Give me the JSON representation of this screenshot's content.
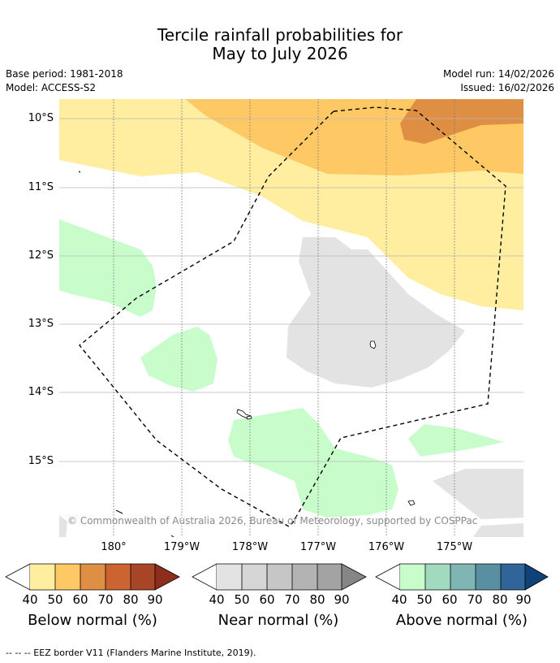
{
  "title": {
    "line1": "Tercile rainfall probabilities for",
    "line2": "May to July 2026"
  },
  "meta": {
    "base_period": "Base period: 1981-2018",
    "model": "Model: ACCESS-S2",
    "model_run": "Model run: 14/02/2026",
    "issued": "Issued: 16/02/2026"
  },
  "map": {
    "lat_labels": [
      "10°S",
      "11°S",
      "12°S",
      "13°S",
      "14°S",
      "15°S"
    ],
    "lon_labels": [
      "180°",
      "179°W",
      "178°W",
      "177°W",
      "176°W",
      "175°W"
    ],
    "copyright": "© Commonwealth of Australia 2026, Bureau of Meteorology, supported by COSPPac",
    "colors": {
      "below_40": "#ffeda0",
      "below_50": "#fec965",
      "below_60": "#df8f44",
      "near_40": "#e3e3e3",
      "above_40": "#c8fdcb",
      "eez_border": "#000000"
    }
  },
  "legends": [
    {
      "label": "Below normal (%)",
      "ticks": [
        "40",
        "50",
        "60",
        "70",
        "80",
        "90"
      ],
      "colors": [
        "#ffeda0",
        "#fec965",
        "#df8f44",
        "#cc6432",
        "#a94628",
        "#8f2d1c"
      ]
    },
    {
      "label": "Near normal (%)",
      "ticks": [
        "40",
        "50",
        "60",
        "70",
        "80",
        "90"
      ],
      "colors": [
        "#e3e3e3",
        "#d5d5d5",
        "#c6c6c6",
        "#b3b3b3",
        "#a3a3a3",
        "#868686"
      ]
    },
    {
      "label": "Above normal (%)",
      "ticks": [
        "40",
        "50",
        "60",
        "70",
        "80",
        "90"
      ],
      "colors": [
        "#c8fdcb",
        "#a2dac0",
        "#7fb6b3",
        "#5890a2",
        "#30659a",
        "#0f4377"
      ]
    }
  ],
  "footnote": "--  --  -- EEZ border V11 (Flanders Marine Institute, 2019)."
}
